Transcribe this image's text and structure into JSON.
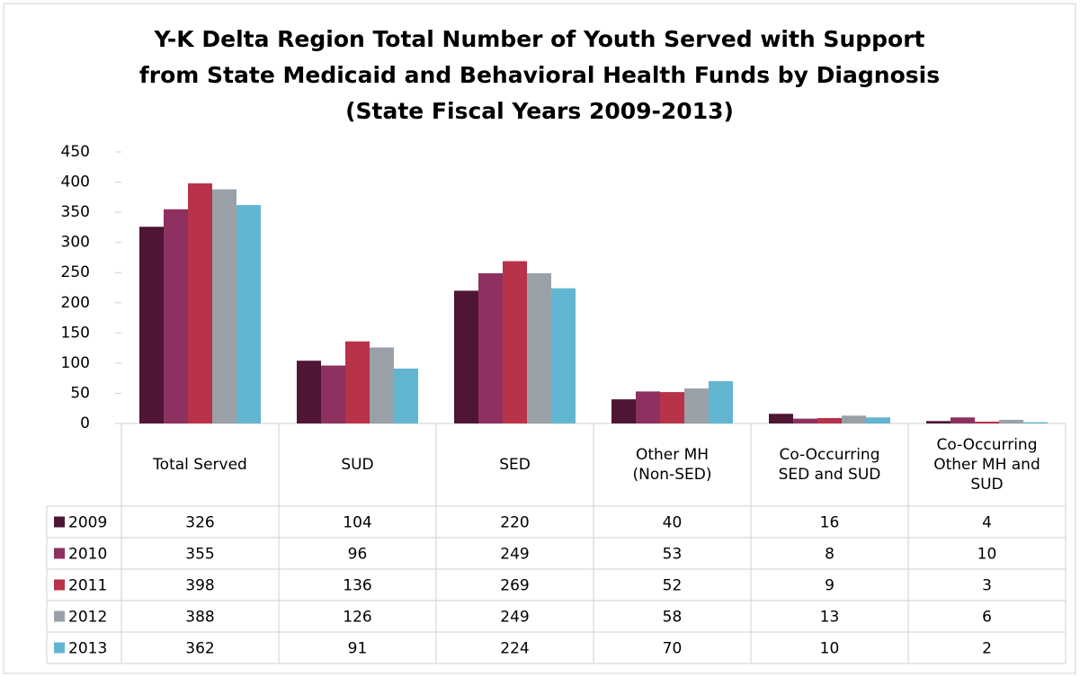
{
  "chart_data": {
    "type": "bar",
    "title": [
      "Y-K Delta Region Total Number of Youth Served with Support",
      "from State Medicaid and Behavioral Health Funds by Diagnosis",
      "(State Fiscal Years 2009-2013)"
    ],
    "categories": [
      "Total Served",
      "SUD",
      "SED",
      "Other MH (Non-SED)",
      "Co-Occurring SED and SUD",
      "Co-Occurring Other MH and SUD"
    ],
    "series": [
      {
        "name": "2009",
        "color": "#4f1535",
        "values": [
          326,
          104,
          220,
          40,
          16,
          4
        ]
      },
      {
        "name": "2010",
        "color": "#8e3060",
        "values": [
          355,
          96,
          249,
          53,
          8,
          10
        ]
      },
      {
        "name": "2011",
        "color": "#b8324a",
        "values": [
          398,
          136,
          269,
          52,
          9,
          3
        ]
      },
      {
        "name": "2012",
        "color": "#9aa0a8",
        "values": [
          388,
          126,
          249,
          58,
          13,
          6
        ]
      },
      {
        "name": "2013",
        "color": "#62b5d0",
        "values": [
          362,
          91,
          224,
          70,
          10,
          2
        ]
      }
    ],
    "ylim": [
      0,
      450
    ],
    "yticks": [
      0,
      50,
      100,
      150,
      200,
      250,
      300,
      350,
      400,
      450
    ],
    "grid": false
  }
}
